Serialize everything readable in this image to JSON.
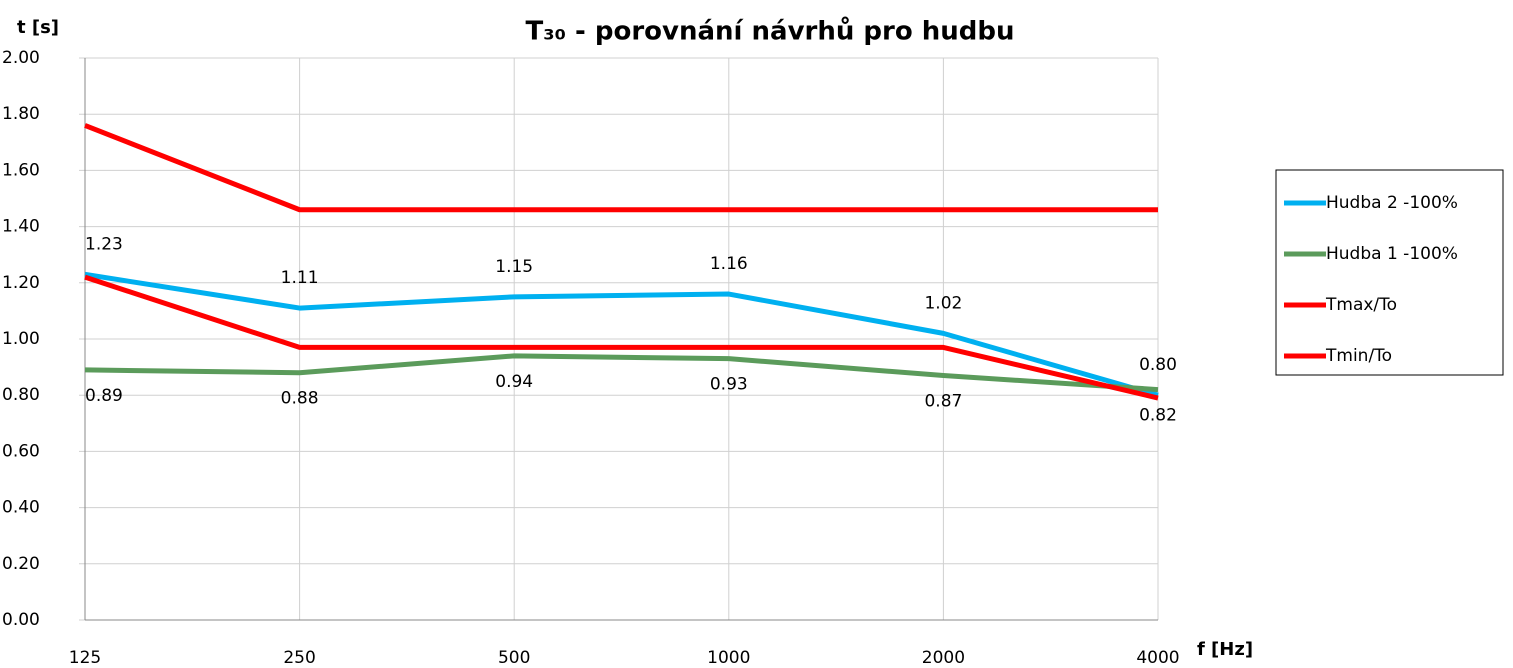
{
  "chart_data": {
    "type": "line",
    "title": "T₃₀ - porovnání návrhů pro hudbu",
    "x_label": "f [Hz]",
    "y_label": "t [s]",
    "categories": [
      "125",
      "250",
      "500",
      "1000",
      "2000",
      "4000"
    ],
    "series": [
      {
        "name": "Hudba 2 -100%",
        "color": "#00b0f0",
        "values": [
          1.23,
          1.11,
          1.15,
          1.16,
          1.02,
          0.8
        ],
        "value_labels": [
          "1.23",
          "1.11",
          "1.15",
          "1.16",
          "1.02",
          "0.80"
        ]
      },
      {
        "name": "Hudba 1 -100%",
        "color": "#5b9b5b",
        "values": [
          0.89,
          0.88,
          0.94,
          0.93,
          0.87,
          0.82
        ],
        "value_labels": [
          "0.89",
          "0.88",
          "0.94",
          "0.93",
          "0.87",
          "0.82"
        ]
      },
      {
        "name": "Tmax/To",
        "color": "#ff0000",
        "values": [
          1.76,
          1.46,
          1.46,
          1.46,
          1.46,
          1.46
        ]
      },
      {
        "name": "Tmin/To",
        "color": "#ff0000",
        "values": [
          1.22,
          0.97,
          0.97,
          0.97,
          0.97,
          0.79
        ]
      }
    ],
    "ylim": [
      0,
      2
    ],
    "yticks": [
      {
        "value": 0,
        "label": "0.00"
      },
      {
        "value": 0.2,
        "label": "0.20"
      },
      {
        "value": 0.4,
        "label": "0.40"
      },
      {
        "value": 0.6,
        "label": "0.60"
      },
      {
        "value": 0.8,
        "label": "0.80"
      },
      {
        "value": 1,
        "label": "1.00"
      },
      {
        "value": 1.2,
        "label": "1.20"
      },
      {
        "value": 1.4,
        "label": "1.40"
      },
      {
        "value": 1.6,
        "label": "1.60"
      },
      {
        "value": 1.8,
        "label": "1.80"
      },
      {
        "value": 2,
        "label": "2.00"
      }
    ],
    "grid": true,
    "legend": "right"
  }
}
